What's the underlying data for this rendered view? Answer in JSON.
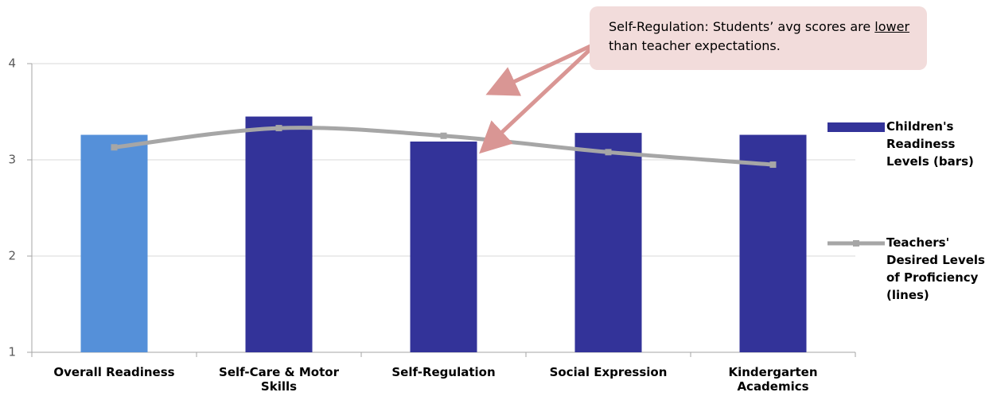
{
  "chart_data": {
    "type": "bar_line",
    "categories": [
      "Overall Readiness",
      "Self-Care & Motor Skills",
      "Self-Regulation",
      "Social Expression",
      "Kindergarten Academics"
    ],
    "series": [
      {
        "name": "Children's Readiness Levels (bars)",
        "type": "bar",
        "color": "#333399",
        "bar_colors": [
          "#5590d9",
          "#333399",
          "#333399",
          "#333399",
          "#333399"
        ],
        "values": [
          3.26,
          3.45,
          3.19,
          3.28,
          3.26
        ]
      },
      {
        "name": "Teachers' Desired Levels of Proficiency (lines)",
        "type": "line",
        "color": "#a6a6a6",
        "values": [
          3.13,
          3.33,
          3.25,
          3.08,
          2.95
        ]
      }
    ],
    "ylim": [
      1,
      4
    ],
    "yticks": [
      1,
      2,
      3,
      4
    ],
    "grid": true,
    "legend": "right",
    "annotation": [
      "Self-Regulation: Students’ avg scores are ",
      "lower",
      " than teacher expectations."
    ]
  }
}
